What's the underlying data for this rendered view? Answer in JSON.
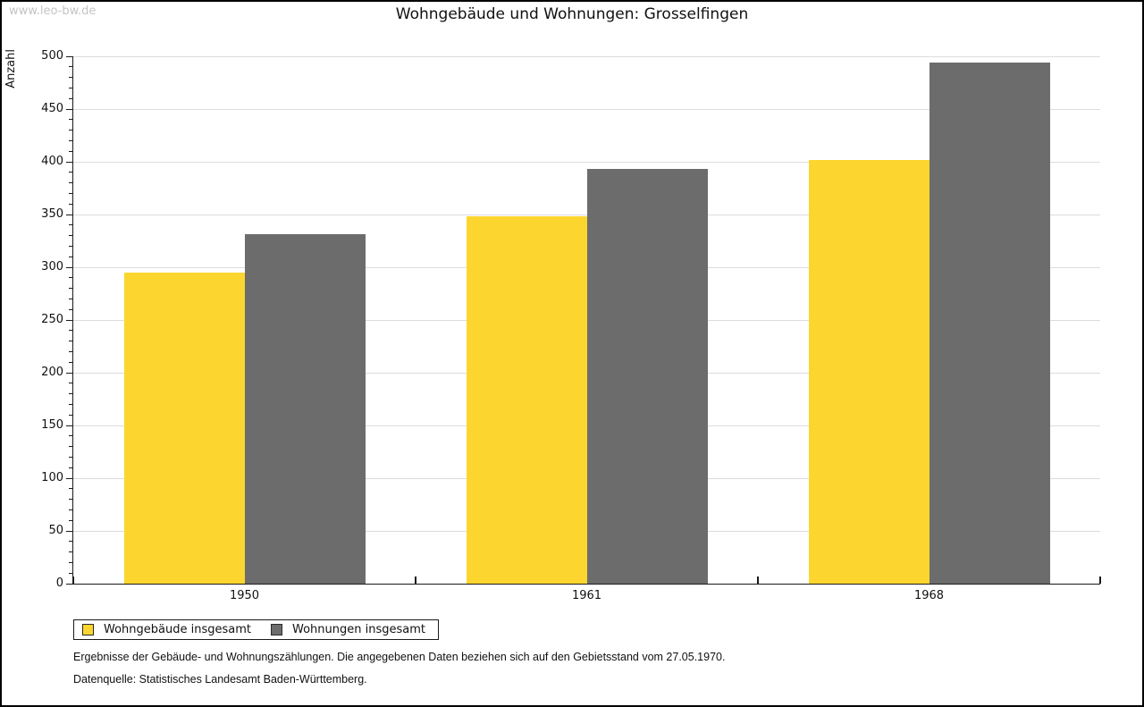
{
  "watermark": "www.leo-bw.de",
  "y_axis_label": "Anzahl",
  "footnotes": [
    "Ergebnisse der Gebäude- und Wohnungszählungen. Die angegebenen Daten beziehen sich auf den Gebietsstand vom 27.05.1970.",
    "Datenquelle: Statistisches Landesamt Baden-Württemberg."
  ],
  "colors": {
    "series_yellow": "#FCD62E",
    "series_gray": "#6C6C6C",
    "grid": "#DCDCDC",
    "axis": "#1A1A1A",
    "watermark": "#C4C4C4"
  },
  "chart_data": {
    "type": "bar",
    "title": "Wohngebäude und Wohnungen: Grosselfingen",
    "xlabel": "",
    "ylabel": "Anzahl",
    "categories": [
      "1950",
      "1961",
      "1968"
    ],
    "series": [
      {
        "name": "Wohngebäude insgesamt",
        "color": "#FCD62E",
        "values": [
          295,
          348,
          402
        ]
      },
      {
        "name": "Wohnungen insgesamt",
        "color": "#6C6C6C",
        "values": [
          331,
          393,
          494
        ]
      }
    ],
    "ylim": [
      0,
      500
    ],
    "y_major_step": 50,
    "y_minor_step": 10,
    "grid": true,
    "legend_position": "bottom-left"
  }
}
